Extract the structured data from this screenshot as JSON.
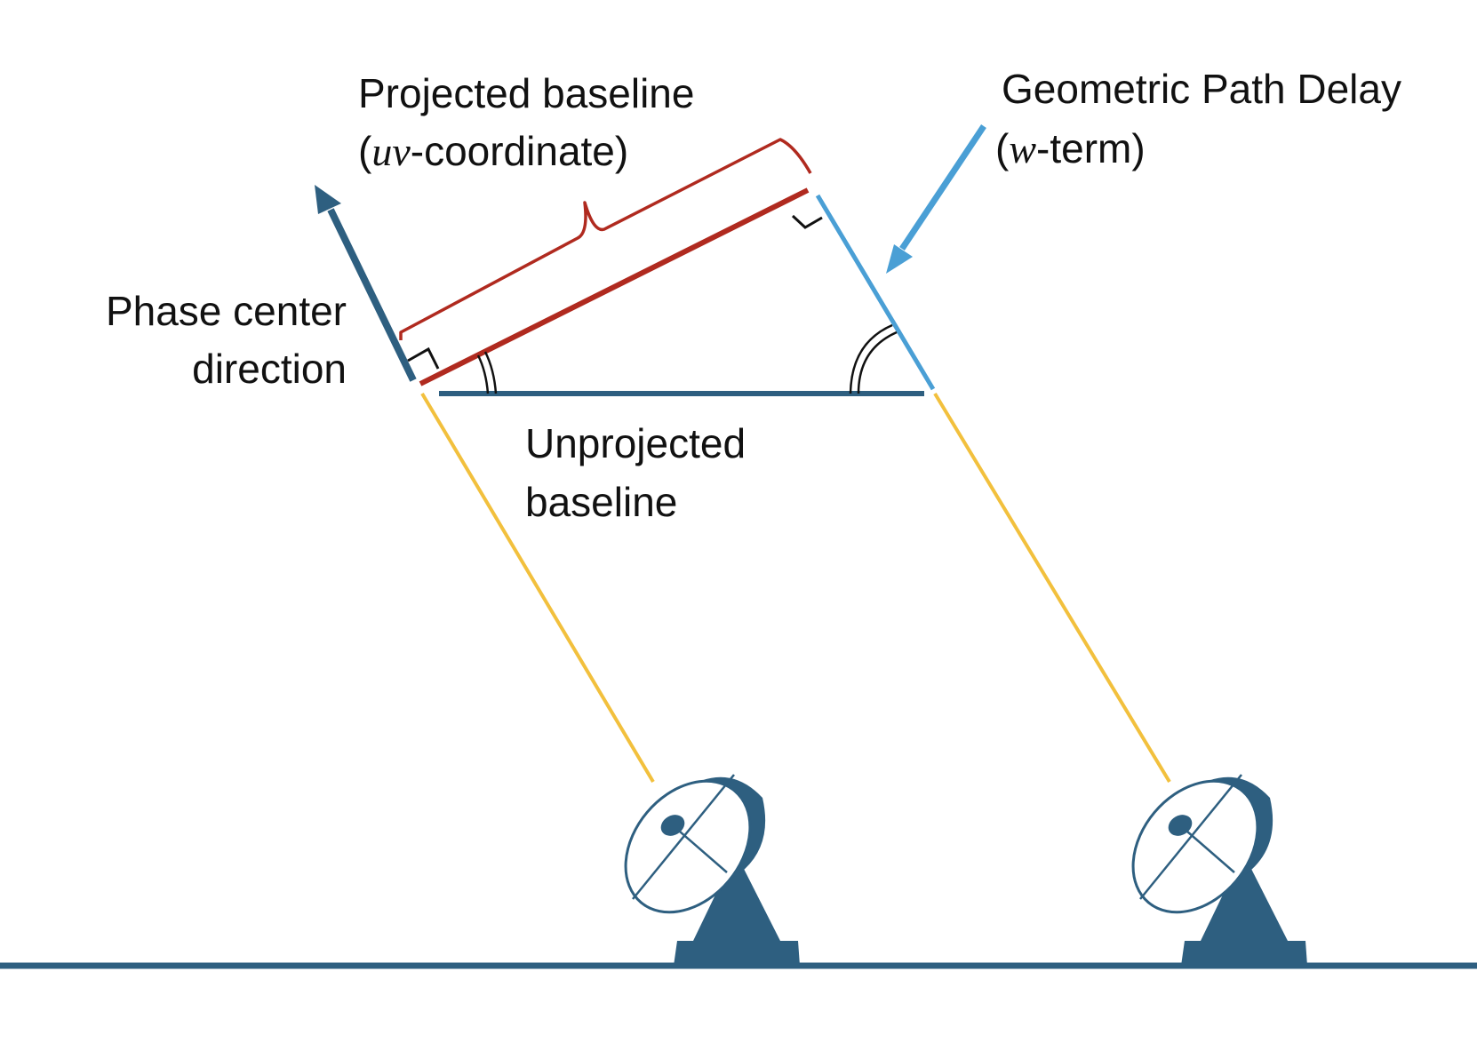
{
  "labels": {
    "projected_line1": "Projected baseline",
    "projected_open": "(",
    "projected_math": "uv",
    "projected_rest": "-coordinate)",
    "delay_line1": "Geometric Path Delay",
    "delay_open": "(",
    "delay_math": "w",
    "delay_rest": "-term)",
    "phase_line1": "Phase center",
    "phase_line2": "direction",
    "unprojected_line1": "Unprojected",
    "unprojected_line2": "baseline"
  },
  "colors": {
    "dark_blue": "#2e5f80",
    "light_blue": "#4a9fd5",
    "red": "#b02a1f",
    "yellow": "#f2c03d",
    "black": "#111111"
  }
}
